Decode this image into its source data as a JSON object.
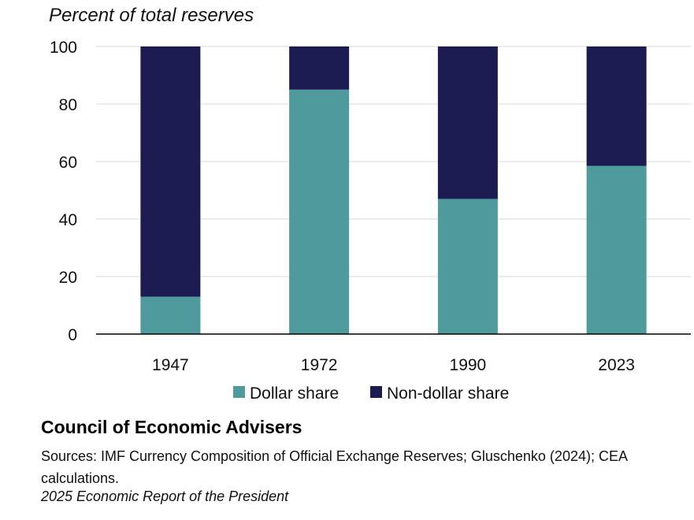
{
  "chart_data": {
    "type": "bar",
    "stacked": true,
    "ylabel": "Percent of total reserves",
    "ylim": [
      0,
      100
    ],
    "yticks": [
      0,
      20,
      40,
      60,
      80,
      100
    ],
    "categories": [
      "1947",
      "1972",
      "1990",
      "2023"
    ],
    "series": [
      {
        "name": "Dollar share",
        "color": "#4f9a9c",
        "values": [
          13,
          85,
          47,
          58.5
        ]
      },
      {
        "name": "Non-dollar share",
        "color": "#1c1c52",
        "values": [
          87,
          15,
          53,
          41.5
        ]
      }
    ],
    "legend_position": "bottom"
  },
  "footer": {
    "organization": "Council of Economic Advisers",
    "sources": "Sources: IMF Currency Composition of Official Exchange Reserves; Gluschenko (2024); CEA calculations.",
    "report": "2025 Economic Report of the President"
  }
}
